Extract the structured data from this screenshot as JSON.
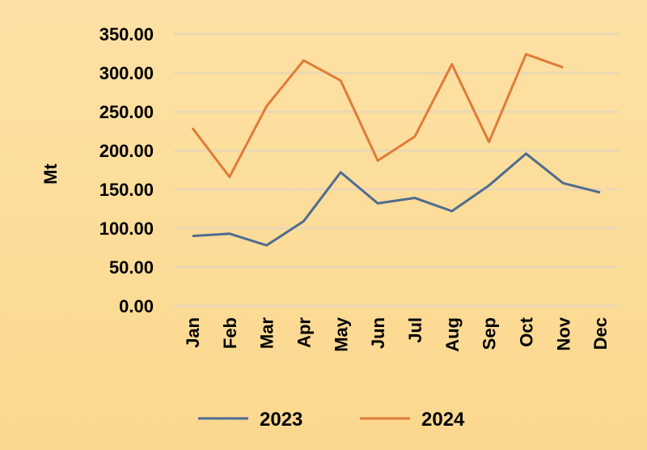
{
  "chart_data": {
    "type": "line",
    "title": "",
    "xlabel": "",
    "ylabel": "Mt",
    "ylim": [
      0,
      350
    ],
    "yticks": [
      "0.00",
      "50.00",
      "100.00",
      "150.00",
      "200.00",
      "250.00",
      "300.00",
      "350.00"
    ],
    "categories": [
      "Jan",
      "Feb",
      "Mar",
      "Apr",
      "May",
      "Jun",
      "Jul",
      "Aug",
      "Sep",
      "Oct",
      "Nov",
      "Dec"
    ],
    "grid": true,
    "legend_position": "bottom",
    "series": [
      {
        "name": "2023",
        "color": "#4f6b8f",
        "values": [
          90,
          93,
          78,
          109,
          172,
          132,
          139,
          122,
          155,
          196,
          158,
          146
        ]
      },
      {
        "name": "2024",
        "color": "#e07b39",
        "values": [
          229,
          166,
          257,
          316,
          290,
          187,
          218,
          311,
          211,
          324,
          307,
          null
        ]
      }
    ]
  }
}
